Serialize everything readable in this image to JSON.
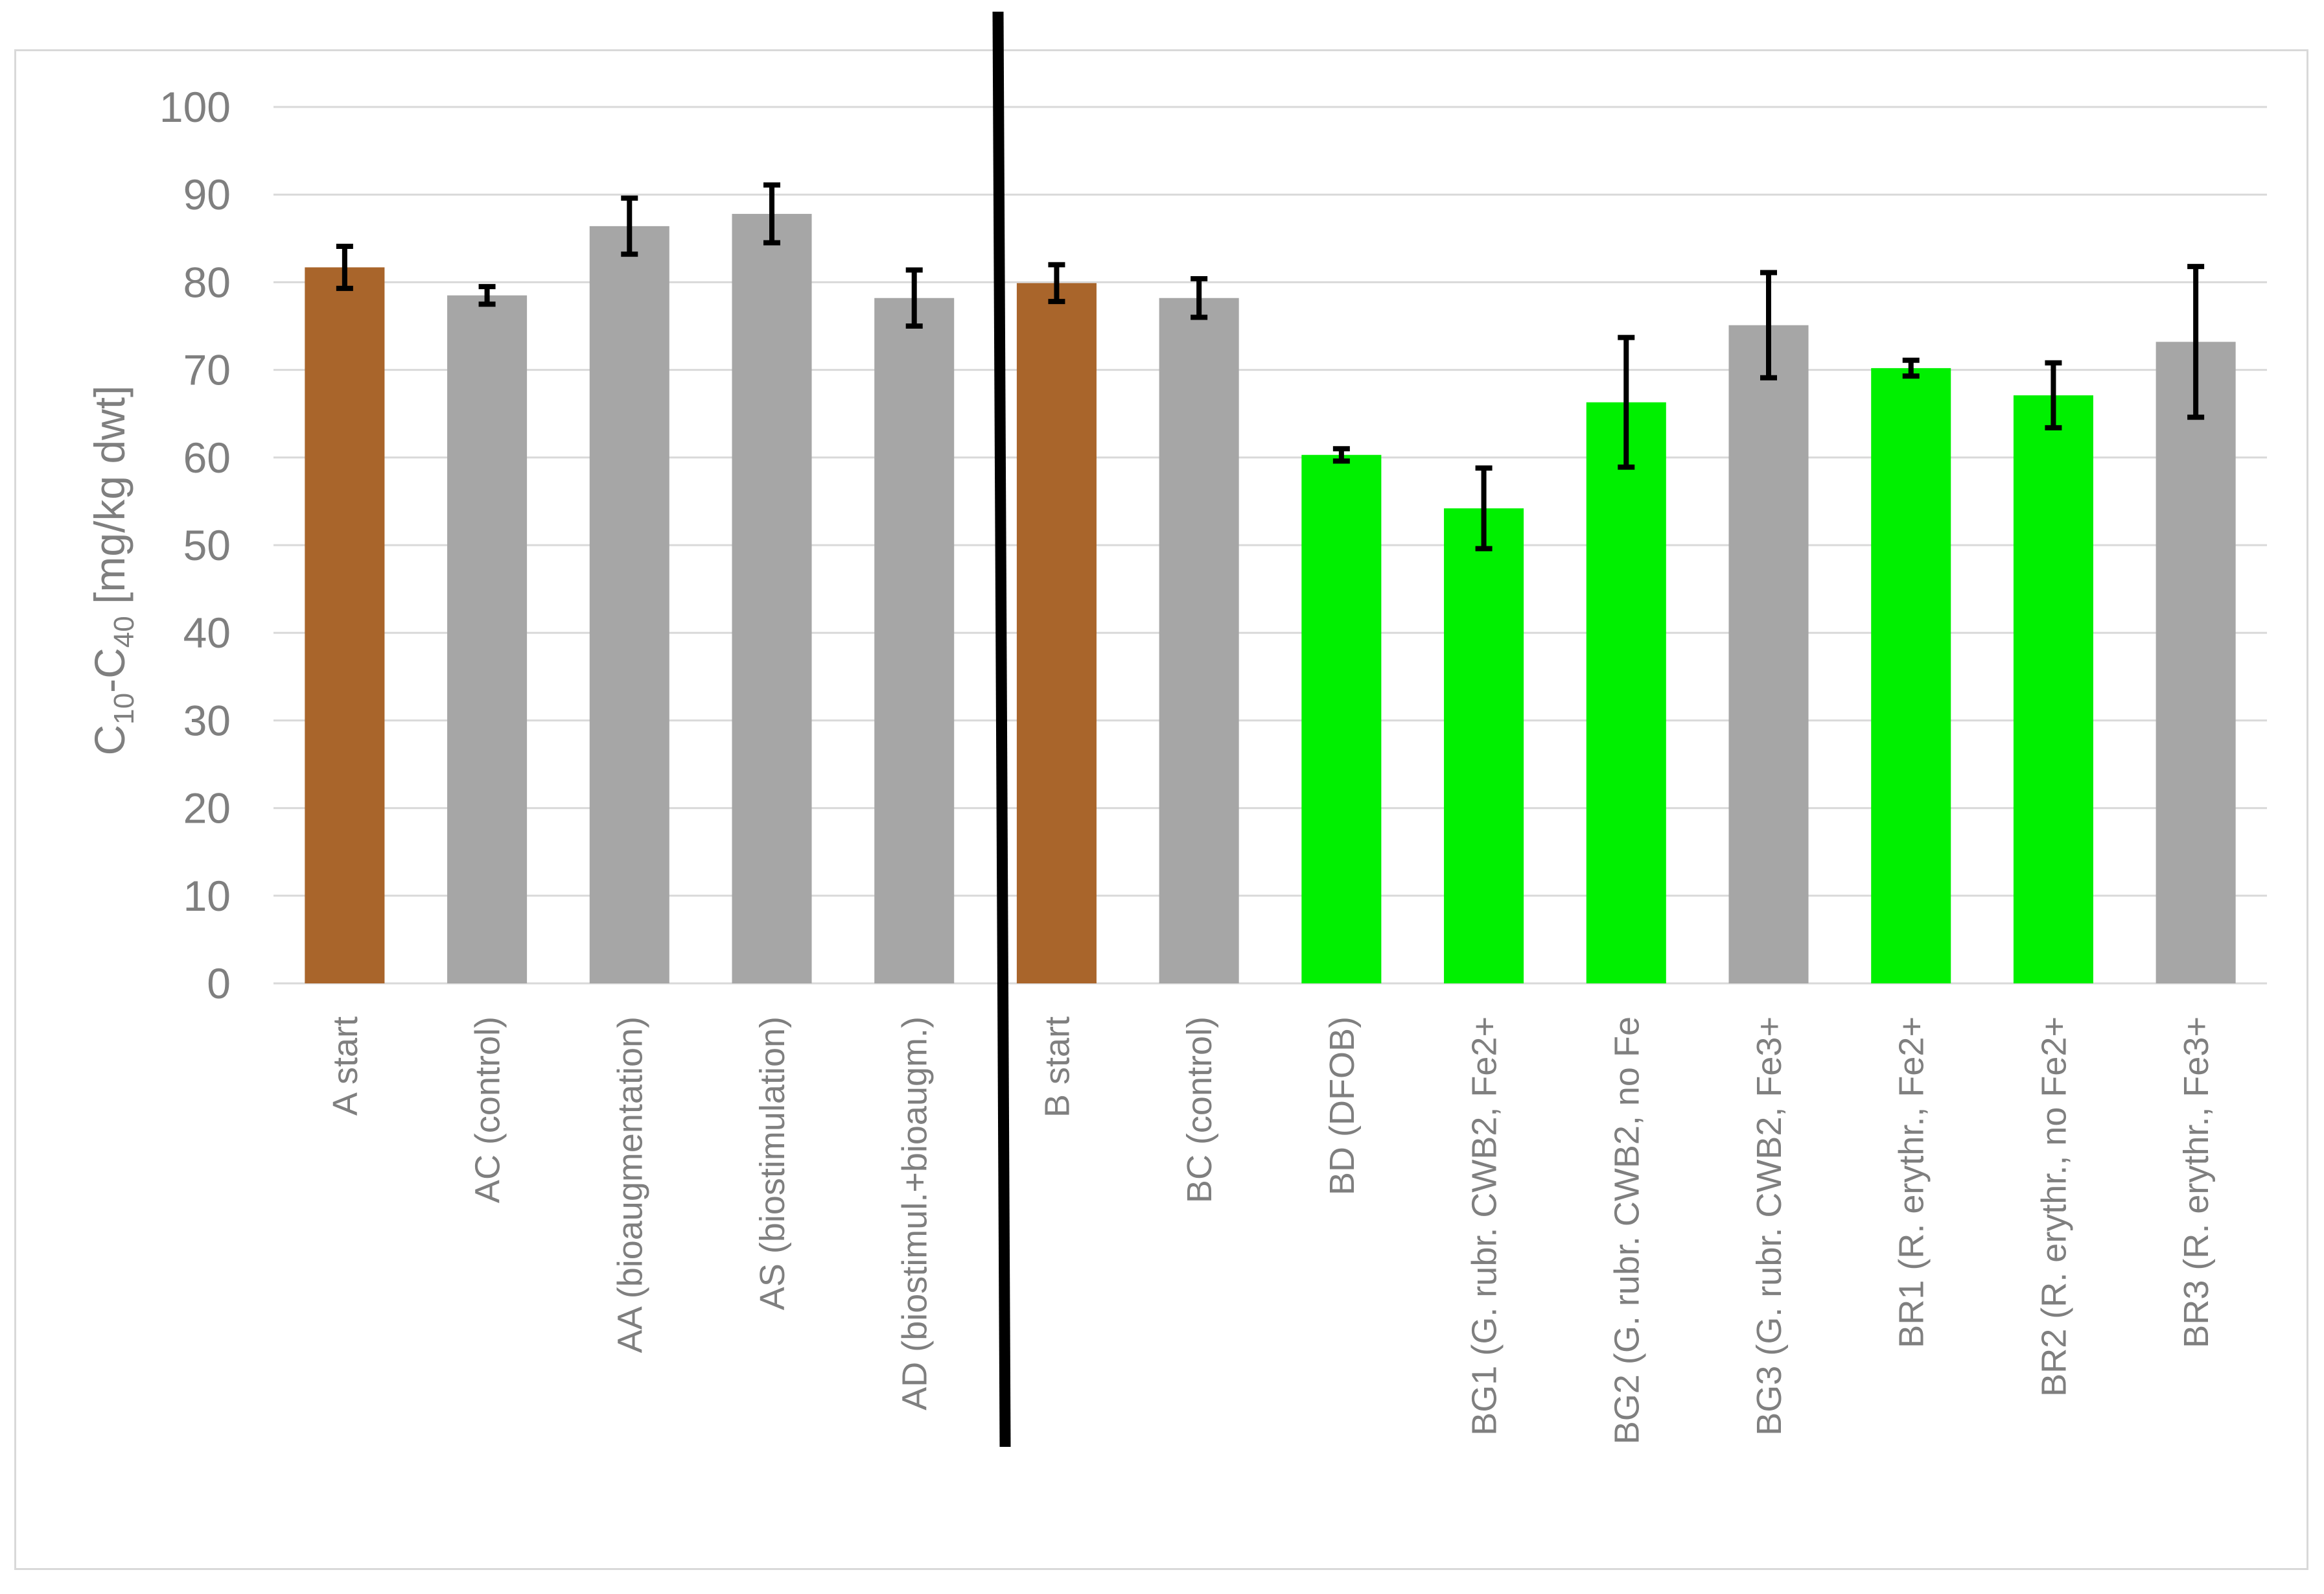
{
  "chart_data": {
    "type": "bar",
    "title": "",
    "xlabel": "",
    "ylabel": {
      "part1": "C",
      "sub1": "10",
      "part2": "-C",
      "sub2": "40",
      "part3": " [mg/kg dwt]"
    },
    "ylim": [
      0,
      100
    ],
    "yticks": [
      0,
      10,
      20,
      30,
      40,
      50,
      60,
      70,
      80,
      90,
      100
    ],
    "grid": true,
    "legend": "none",
    "categories": [
      "A start",
      "AC (control)",
      "AA (bioaugmentation)",
      "AS (biostimulation)",
      "AD (biostimul.+bioaugm.)",
      "B start",
      "BC (control)",
      "BD (DFOB)",
      "BG1 (G. rubr. CWB2, Fe2+",
      "BG2 (G. rubr. CWB2, no Fe",
      "BG3 (G. rubr. CWB2, Fe3+",
      "BR1 (R. erythr., Fe2+",
      "BR2 (R. erythr., no Fe2+",
      "BR3 (R. erythr., Fe3+"
    ],
    "values": [
      81.7,
      78.5,
      86.4,
      87.8,
      78.2,
      79.9,
      78.2,
      60.3,
      54.2,
      66.3,
      75.1,
      70.2,
      67.1,
      73.2
    ],
    "errors": [
      2.4,
      1.0,
      3.2,
      3.3,
      3.2,
      2.1,
      2.2,
      0.7,
      4.6,
      7.4,
      6.0,
      0.9,
      3.7,
      8.6
    ],
    "bar_colors": [
      "#a9652b",
      "#a6a6a6",
      "#a6a6a6",
      "#a6a6a6",
      "#a6a6a6",
      "#a9652b",
      "#a6a6a6",
      "#00f000",
      "#00f000",
      "#00f000",
      "#a6a6a6",
      "#00f000",
      "#00f000",
      "#a6a6a6"
    ],
    "separator_after_index": 4,
    "colors": {
      "grid": "#d9d9d9",
      "axis": "#d9d9d9",
      "text": "#7f7f7f",
      "error_bar": "#000000",
      "separator": "#000000"
    }
  }
}
